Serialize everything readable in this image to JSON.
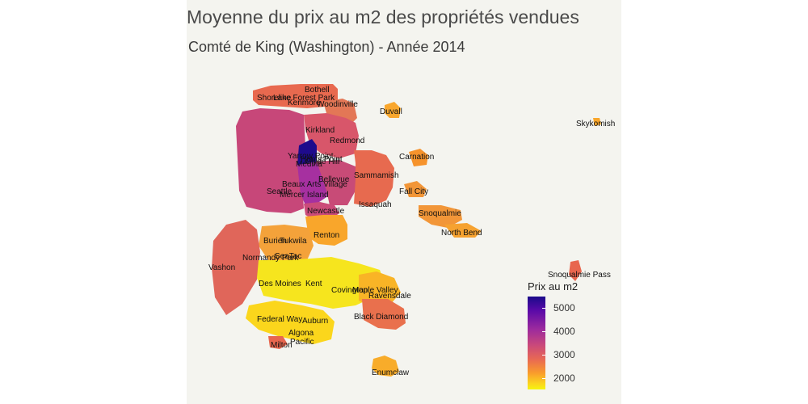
{
  "title": "Moyenne du prix au m2 des propriétés vendues",
  "subtitle": "Comté de King (Washington) - Année 2014",
  "legend": {
    "title": "Prix au m2",
    "min": 1500,
    "max": 5500,
    "ticks": [
      "5000",
      "4000",
      "3000",
      "2000"
    ],
    "tick_values": [
      5000,
      4000,
      3000,
      2000
    ],
    "palette": "plasma"
  },
  "cities": [
    {
      "name": "Bothell"
    },
    {
      "name": "Shoreline"
    },
    {
      "name": "Lake Forest Park"
    },
    {
      "name": "Kenmore"
    },
    {
      "name": "Woodinville"
    },
    {
      "name": "Duvall"
    },
    {
      "name": "Skykomish"
    },
    {
      "name": "Kirkland"
    },
    {
      "name": "Redmond"
    },
    {
      "name": "Yarrow Point"
    },
    {
      "name": "Hunts Point"
    },
    {
      "name": "Clyde Hill"
    },
    {
      "name": "Medina"
    },
    {
      "name": "Carnation"
    },
    {
      "name": "Bellevue"
    },
    {
      "name": "Sammamish"
    },
    {
      "name": "Beaux Arts Village"
    },
    {
      "name": "Seattle"
    },
    {
      "name": "Mercer Island"
    },
    {
      "name": "Fall City"
    },
    {
      "name": "Issaquah"
    },
    {
      "name": "Newcastle"
    },
    {
      "name": "Snoqualmie"
    },
    {
      "name": "North Bend"
    },
    {
      "name": "Renton"
    },
    {
      "name": "Burien"
    },
    {
      "name": "Tukwila"
    },
    {
      "name": "SeaTac"
    },
    {
      "name": "Normandy Park"
    },
    {
      "name": "Vashon"
    },
    {
      "name": "Snoqualmie Pass"
    },
    {
      "name": "Des Moines"
    },
    {
      "name": "Kent"
    },
    {
      "name": "Covington"
    },
    {
      "name": "Maple Valley"
    },
    {
      "name": "Ravensdale"
    },
    {
      "name": "Federal Way"
    },
    {
      "name": "Auburn"
    },
    {
      "name": "Black Diamond"
    },
    {
      "name": "Algona"
    },
    {
      "name": "Pacific"
    },
    {
      "name": "Milton"
    },
    {
      "name": "Enumclaw"
    }
  ]
}
